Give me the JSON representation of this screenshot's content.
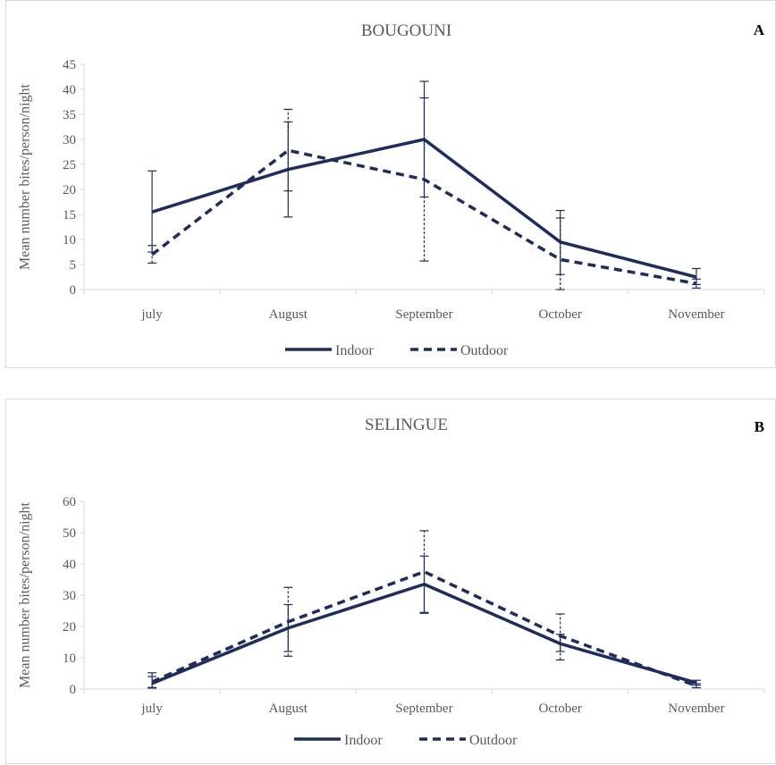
{
  "chart_data": [
    {
      "type": "line",
      "title": "BOUGOUNI",
      "panel_label": "A",
      "ylabel": "Mean number  bites/person/night",
      "xlabel": "",
      "categories": [
        "july",
        "August",
        "September",
        "October",
        "November"
      ],
      "ylim": [
        0,
        45
      ],
      "yticks": [
        0,
        5,
        10,
        15,
        20,
        25,
        30,
        35,
        40,
        45
      ],
      "grid": false,
      "legend_position": "bottom",
      "series": [
        {
          "name": "Indoor",
          "values": [
            15.5,
            24,
            30,
            9.5,
            2.5
          ],
          "error_low": [
            7.5,
            14.5,
            18.5,
            3,
            1
          ],
          "error_high": [
            23.7,
            33.5,
            41.6,
            15.8,
            4.2
          ]
        },
        {
          "name": "Outdoor",
          "values": [
            7,
            27.8,
            22,
            6,
            1.2
          ],
          "error_low": [
            5.3,
            19.7,
            5.7,
            0,
            0.3
          ],
          "error_high": [
            8.8,
            36,
            38.3,
            14.3,
            2.1
          ]
        }
      ]
    },
    {
      "type": "line",
      "title": "SELINGUE",
      "panel_label": "B",
      "ylabel": "Mean number  bites/person/night",
      "xlabel": "",
      "categories": [
        "july",
        "August",
        "September",
        "October",
        "November"
      ],
      "ylim": [
        0,
        60
      ],
      "yticks": [
        0,
        10,
        20,
        30,
        40,
        50,
        60
      ],
      "grid": false,
      "legend_position": "bottom",
      "series": [
        {
          "name": "Indoor",
          "values": [
            1.8,
            19.5,
            33.5,
            14.5,
            2
          ],
          "error_low": [
            0.3,
            12,
            24.5,
            12,
            1.2
          ],
          "error_high": [
            5.2,
            27,
            42.5,
            17.5,
            2.8
          ]
        },
        {
          "name": "Outdoor",
          "values": [
            2.3,
            21.5,
            37.5,
            17,
            1
          ],
          "error_low": [
            0.5,
            10.5,
            24.2,
            9.3,
            0.4
          ],
          "error_high": [
            4,
            32.5,
            50.6,
            24,
            1.7
          ]
        }
      ]
    }
  ],
  "colors": {
    "series": "#1f2d5c",
    "axis": "#d9d9d9",
    "text": "#595959",
    "panel_border": "#d9d9d9"
  }
}
